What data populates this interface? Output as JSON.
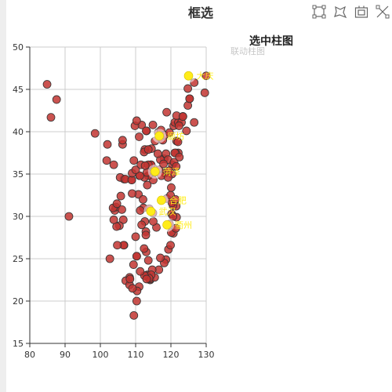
{
  "title": "框选",
  "subtitle": "选中柱图",
  "ghost_text": "联动柱图",
  "toolbox": {
    "items": [
      {
        "icon": "rect-select-icon"
      },
      {
        "icon": "lasso-select-icon"
      },
      {
        "icon": "keep-select-icon"
      },
      {
        "icon": "clear-select-icon"
      }
    ]
  },
  "colors": {
    "point_fill": "#c23531",
    "point_stroke": "#333333",
    "highlight_fill": "#ffec1a",
    "axis": "#333333",
    "grid": "#cccccc",
    "label": "#ffec1a"
  },
  "chart_data": {
    "type": "scatter",
    "title": "",
    "xlabel": "",
    "ylabel": "",
    "xlim": [
      80,
      130
    ],
    "ylim": [
      15,
      50
    ],
    "x_ticks": [
      80,
      90,
      100,
      110,
      120,
      130
    ],
    "y_ticks": [
      15,
      20,
      25,
      30,
      35,
      40,
      45,
      50
    ],
    "grid": true,
    "points": [
      [
        84.9,
        45.6
      ],
      [
        87.6,
        43.8
      ],
      [
        86.0,
        41.7
      ],
      [
        91.1,
        30.0
      ],
      [
        98.5,
        39.8
      ],
      [
        101.8,
        36.6
      ],
      [
        102.0,
        38.5
      ],
      [
        103.8,
        36.1
      ],
      [
        106.3,
        38.5
      ],
      [
        106.3,
        39.0
      ],
      [
        106.7,
        34.4
      ],
      [
        108.9,
        34.3
      ],
      [
        111.1,
        34.8
      ],
      [
        113.6,
        34.8
      ],
      [
        115.0,
        34.3
      ],
      [
        116.4,
        39.9
      ],
      [
        117.2,
        39.1
      ],
      [
        114.5,
        38.0
      ],
      [
        112.6,
        37.9
      ],
      [
        111.7,
        40.8
      ],
      [
        109.8,
        40.7
      ],
      [
        113.1,
        40.1
      ],
      [
        110.3,
        41.3
      ],
      [
        118.8,
        42.3
      ],
      [
        121.6,
        38.9
      ],
      [
        123.4,
        41.8
      ],
      [
        125.3,
        43.9
      ],
      [
        126.6,
        45.8
      ],
      [
        129.6,
        44.6
      ],
      [
        124.8,
        45.1
      ],
      [
        130.0,
        46.6
      ],
      [
        121.5,
        31.2
      ],
      [
        120.2,
        30.3
      ],
      [
        118.8,
        32.1
      ],
      [
        120.6,
        31.3
      ],
      [
        120.3,
        31.6
      ],
      [
        119.9,
        32.5
      ],
      [
        121.6,
        29.9
      ],
      [
        120.7,
        28.0
      ],
      [
        119.3,
        26.1
      ],
      [
        118.6,
        24.9
      ],
      [
        114.1,
        22.5
      ],
      [
        113.3,
        23.1
      ],
      [
        113.1,
        23.0
      ],
      [
        114.1,
        22.6
      ],
      [
        110.3,
        20.0
      ],
      [
        109.5,
        18.3
      ],
      [
        108.3,
        22.8
      ],
      [
        110.3,
        25.3
      ],
      [
        106.7,
        26.6
      ],
      [
        102.7,
        25.0
      ],
      [
        104.1,
        30.7
      ],
      [
        106.5,
        29.6
      ],
      [
        112.9,
        28.2
      ],
      [
        114.3,
        30.6
      ],
      [
        115.9,
        28.7
      ],
      [
        117.3,
        31.9
      ],
      [
        113.6,
        34.8
      ],
      [
        114.3,
        30.6
      ],
      [
        118.1,
        36.8
      ],
      [
        117.0,
        36.7
      ],
      [
        120.4,
        36.1
      ],
      [
        122.1,
        37.5
      ],
      [
        116.6,
        35.5
      ],
      [
        115.5,
        35.2
      ],
      [
        118.3,
        35.1
      ],
      [
        117.3,
        34.8
      ],
      [
        118.6,
        37.4
      ],
      [
        119.2,
        36.7
      ],
      [
        121.4,
        37.5
      ],
      [
        119.5,
        35.4
      ],
      [
        117.9,
        36.2
      ],
      [
        116.3,
        37.4
      ],
      [
        115.0,
        35.7
      ],
      [
        114.3,
        36.1
      ],
      [
        113.3,
        33.7
      ],
      [
        112.5,
        34.6
      ],
      [
        111.2,
        34.8
      ],
      [
        114.4,
        36.1
      ],
      [
        113.2,
        35.2
      ],
      [
        113.6,
        36.1
      ],
      [
        112.2,
        31.0
      ],
      [
        111.3,
        30.7
      ],
      [
        110.8,
        32.6
      ],
      [
        112.1,
        32.0
      ],
      [
        113.9,
        30.9
      ],
      [
        114.9,
        30.4
      ],
      [
        115.0,
        29.4
      ],
      [
        112.6,
        29.4
      ],
      [
        111.7,
        29.0
      ],
      [
        113.0,
        25.8
      ],
      [
        112.9,
        27.8
      ],
      [
        112.4,
        26.2
      ],
      [
        110.0,
        27.6
      ],
      [
        109.4,
        24.3
      ],
      [
        110.3,
        25.3
      ],
      [
        107.2,
        22.4
      ],
      [
        108.3,
        21.9
      ],
      [
        106.6,
        26.6
      ],
      [
        104.8,
        26.6
      ],
      [
        105.4,
        28.9
      ],
      [
        104.6,
        28.8
      ],
      [
        103.8,
        29.6
      ],
      [
        104.4,
        31.1
      ],
      [
        103.6,
        31.0
      ],
      [
        105.8,
        32.4
      ],
      [
        106.1,
        30.8
      ],
      [
        104.7,
        31.5
      ],
      [
        105.6,
        34.6
      ],
      [
        107.1,
        34.4
      ],
      [
        109.0,
        32.7
      ],
      [
        109.5,
        36.6
      ],
      [
        108.9,
        34.3
      ],
      [
        109.0,
        35.1
      ],
      [
        110.0,
        35.5
      ],
      [
        111.5,
        36.1
      ],
      [
        112.7,
        36.0
      ],
      [
        112.4,
        37.6
      ],
      [
        113.6,
        37.9
      ],
      [
        113.0,
        40.1
      ],
      [
        111.0,
        39.4
      ],
      [
        114.9,
        40.8
      ],
      [
        115.5,
        38.9
      ],
      [
        116.7,
        39.5
      ],
      [
        117.7,
        39.0
      ],
      [
        117.2,
        40.2
      ],
      [
        118.2,
        39.6
      ],
      [
        119.6,
        39.9
      ],
      [
        120.8,
        40.7
      ],
      [
        121.1,
        41.1
      ],
      [
        122.1,
        41.1
      ],
      [
        123.0,
        41.1
      ],
      [
        121.6,
        41.9
      ],
      [
        122.3,
        40.7
      ],
      [
        123.4,
        41.8
      ],
      [
        124.4,
        40.1
      ],
      [
        124.8,
        43.1
      ],
      [
        125.3,
        43.9
      ],
      [
        126.6,
        41.1
      ],
      [
        122.0,
        38.8
      ],
      [
        121.1,
        37.5
      ],
      [
        120.9,
        36.4
      ],
      [
        121.5,
        35.9
      ],
      [
        122.4,
        37.0
      ],
      [
        120.3,
        35.0
      ],
      [
        119.2,
        34.6
      ],
      [
        120.1,
        33.4
      ],
      [
        121.3,
        32.0
      ],
      [
        120.6,
        30.0
      ],
      [
        119.6,
        29.1
      ],
      [
        120.1,
        28.1
      ],
      [
        121.4,
        28.6
      ],
      [
        119.9,
        26.6
      ],
      [
        118.1,
        24.5
      ],
      [
        117.0,
        25.1
      ],
      [
        116.6,
        23.7
      ],
      [
        115.4,
        22.8
      ],
      [
        114.7,
        23.7
      ],
      [
        114.4,
        23.1
      ],
      [
        113.8,
        22.7
      ],
      [
        112.5,
        23.0
      ],
      [
        113.6,
        24.8
      ],
      [
        113.1,
        22.6
      ],
      [
        111.0,
        21.7
      ],
      [
        110.4,
        21.2
      ],
      [
        109.1,
        21.5
      ],
      [
        108.4,
        22.6
      ],
      [
        111.3,
        23.5
      ]
    ],
    "highlights": [
      {
        "name": "大庆",
        "x": 125.0,
        "y": 46.6
      },
      {
        "name": "廊坊",
        "x": 116.7,
        "y": 39.5
      },
      {
        "name": "菏泽",
        "x": 115.5,
        "y": 35.3
      },
      {
        "name": "合肥",
        "x": 117.3,
        "y": 31.9
      },
      {
        "name": "武汉",
        "x": 114.3,
        "y": 30.6
      },
      {
        "name": "衢州",
        "x": 118.9,
        "y": 29.0
      }
    ]
  }
}
